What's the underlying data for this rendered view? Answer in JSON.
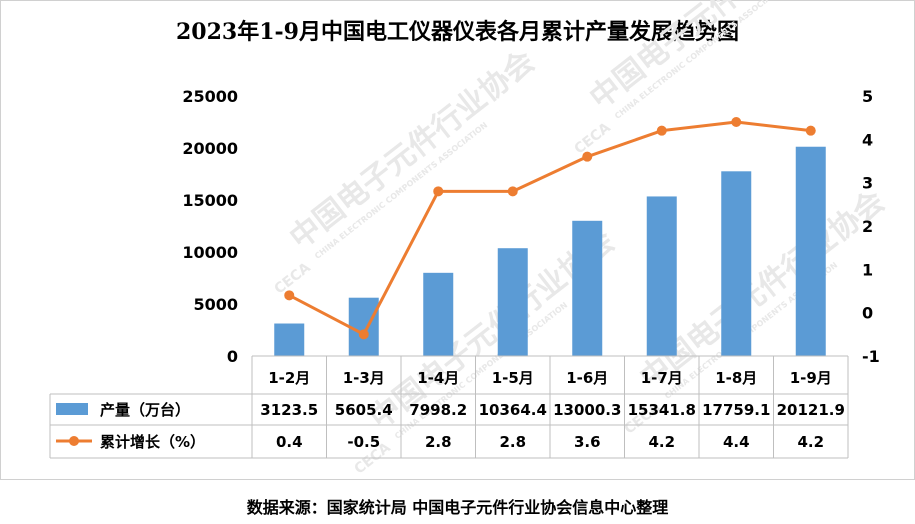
{
  "title": "2023年1-9月中国电工仪器仪表各月累计产量发展趋势图",
  "source": "数据来源：国家统计局    中国电子元件行业协会信息中心整理",
  "watermark": {
    "text": "中国电子元件行业协会",
    "subtext": "CHINA ELECTRONIC COMPONENTS ASSOCIATION",
    "logo": "CECA"
  },
  "colors": {
    "bar": "#5b9bd5",
    "line": "#ed7d31",
    "axis": "#bfbfbf",
    "grid": "#d9d9d9"
  },
  "chart_data": {
    "type": "bar",
    "categories": [
      "1-2月",
      "1-3月",
      "1-4月",
      "1-5月",
      "1-6月",
      "1-7月",
      "1-8月",
      "1-9月"
    ],
    "series": [
      {
        "name": "产量（万台）",
        "type": "bar",
        "axis": "left",
        "values": [
          3123.5,
          5605.4,
          7998.2,
          10364.4,
          13000.3,
          15341.8,
          17759.1,
          20121.9
        ],
        "labels": [
          "3123.5",
          "5605.4",
          "7998.2",
          "10364.4",
          "13000.3",
          "15341.8",
          "17759.1",
          "20121.9"
        ]
      },
      {
        "name": "累计增长（%）",
        "type": "line",
        "axis": "right",
        "values": [
          0.4,
          -0.5,
          2.8,
          2.8,
          3.6,
          4.2,
          4.4,
          4.2
        ],
        "labels": [
          "0.4",
          "-0.5",
          "2.8",
          "2.8",
          "3.6",
          "4.2",
          "4.4",
          "4.2"
        ]
      }
    ],
    "y_left": {
      "ylim": [
        0,
        25000
      ],
      "ticks": [
        0,
        5000,
        10000,
        15000,
        20000,
        25000
      ],
      "tick_labels": [
        "0",
        "5000",
        "10000",
        "15000",
        "20000",
        "25000"
      ]
    },
    "y_right": {
      "ylim": [
        -1,
        5
      ],
      "ticks": [
        -1,
        0,
        1,
        2,
        3,
        4,
        5
      ],
      "tick_labels": [
        "-1",
        "0",
        "1",
        "2",
        "3",
        "4",
        "5"
      ]
    },
    "grid": false,
    "legend": "data-table"
  }
}
